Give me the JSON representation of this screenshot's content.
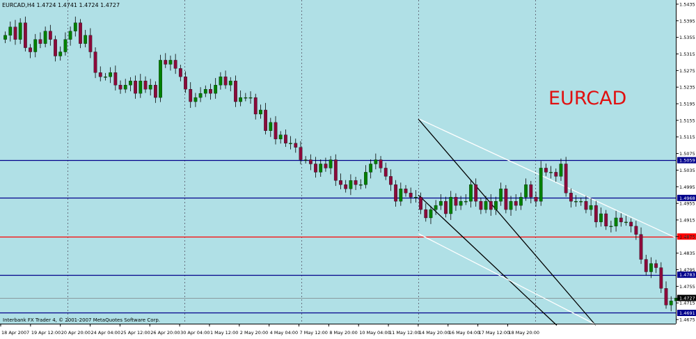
{
  "header": {
    "text": "EURCAD,H4  1.4724 1.4741 1.4724 1.4727"
  },
  "watermark": {
    "text": "EURCAD"
  },
  "footer": {
    "text": "Interbank FX Trader 4, © 2001-2007 MetaQuotes Software Corp."
  },
  "colors": {
    "background": "#b0e0e6",
    "bull": "#008000",
    "bear": "#8b0a3a",
    "wick": "#000000",
    "hline_blue": "#00008b",
    "hline_red": "#ff0000",
    "channel_dark": "#000000",
    "channel_light": "#ffffff",
    "watermark": "#e01010",
    "axis_text": "#000000"
  },
  "chart_data": {
    "type": "candlestick",
    "symbol": "EURCAD",
    "timeframe": "H4",
    "ylim": [
      1.4665,
      1.5445
    ],
    "yticks": [
      "1.5435",
      "1.5395",
      "1.5355",
      "1.5315",
      "1.5275",
      "1.5235",
      "1.5195",
      "1.5155",
      "1.5115",
      "1.5075",
      "1.5035",
      "1.4995",
      "1.4955",
      "1.4915",
      "1.4875",
      "1.4835",
      "1.4795",
      "1.4755",
      "1.4715",
      "1.4675"
    ],
    "xticks": [
      "18 Apr 2007",
      "19 Apr 12:00",
      "20 Apr 20:00",
      "24 Apr 04:00",
      "25 Apr 12:00",
      "26 Apr 20:00",
      "30 Apr 04:00",
      "1 May 12:00",
      "2 May 20:00",
      "4 May 04:00",
      "7 May 12:00",
      "8 May 20:00",
      "10 May 04:00",
      "11 May 12:00",
      "14 May 20:00",
      "16 May 04:00",
      "17 May 12:00",
      "18 May 20:00"
    ],
    "horizontal_levels": [
      {
        "price": 1.5059,
        "label": "1.5059",
        "color": "blue"
      },
      {
        "price": 1.4968,
        "label": "1.4968",
        "color": "blue"
      },
      {
        "price": 1.4875,
        "label": "1.4875",
        "color": "red"
      },
      {
        "price": 1.4783,
        "label": "1.4783",
        "color": "blue"
      },
      {
        "price": 1.4691,
        "label": "1.4691",
        "color": "blue"
      }
    ],
    "current_price": {
      "price": 1.4727,
      "label": "1.4727"
    },
    "candle_count": 135,
    "candles_close": [
      1.536,
      1.538,
      1.535,
      1.539,
      1.533,
      1.532,
      1.535,
      1.534,
      1.537,
      1.535,
      1.531,
      1.532,
      1.535,
      1.537,
      1.539,
      1.534,
      1.536,
      1.532,
      1.527,
      1.526,
      1.526,
      1.527,
      1.524,
      1.523,
      1.524,
      1.525,
      1.522,
      1.525,
      1.523,
      1.524,
      1.521,
      1.53,
      1.529,
      1.53,
      1.528,
      1.526,
      1.523,
      1.52,
      1.521,
      1.522,
      1.523,
      1.522,
      1.524,
      1.526,
      1.524,
      1.525,
      1.52,
      1.521,
      1.521,
      1.521,
      1.517,
      1.518,
      1.513,
      1.515,
      1.511,
      1.512,
      1.51,
      1.51,
      1.509,
      1.506,
      1.506,
      1.505,
      1.503,
      1.505,
      1.504,
      1.506,
      1.501,
      1.5,
      1.499,
      1.501,
      1.5,
      1.5,
      1.503,
      1.505,
      1.506,
      1.504,
      1.502,
      1.5,
      1.496,
      1.499,
      1.498,
      1.497,
      1.497,
      1.494,
      1.492,
      1.494,
      1.495,
      1.496,
      1.493,
      1.497,
      1.495,
      1.496,
      1.496,
      1.5,
      1.496,
      1.494,
      1.496,
      1.494,
      1.496,
      1.499,
      1.494,
      1.496,
      1.495,
      1.497,
      1.5,
      1.497,
      1.496,
      1.504,
      1.503,
      1.503,
      1.502,
      1.505,
      1.498,
      1.496,
      1.496,
      1.496,
      1.494,
      1.495,
      1.491,
      1.493,
      1.49,
      1.49,
      1.492,
      1.491,
      1.491,
      1.49,
      1.488,
      1.482,
      1.479,
      1.481,
      1.48,
      1.475,
      1.471,
      1.472,
      1.4727
    ],
    "channels": [
      {
        "color": "dark",
        "from": [
          1.5158,
          11
        ],
        "to": [
          1.4661,
          70
        ]
      },
      {
        "color": "dark",
        "from": [
          1.4975,
          11
        ],
        "to": [
          1.4661,
          40
        ]
      },
      {
        "color": "light",
        "from": [
          1.5158,
          12
        ],
        "to": [
          1.4872,
          125
        ]
      },
      {
        "color": "light",
        "from": [
          1.4882,
          11
        ],
        "to": [
          1.4661,
          80
        ]
      }
    ]
  }
}
